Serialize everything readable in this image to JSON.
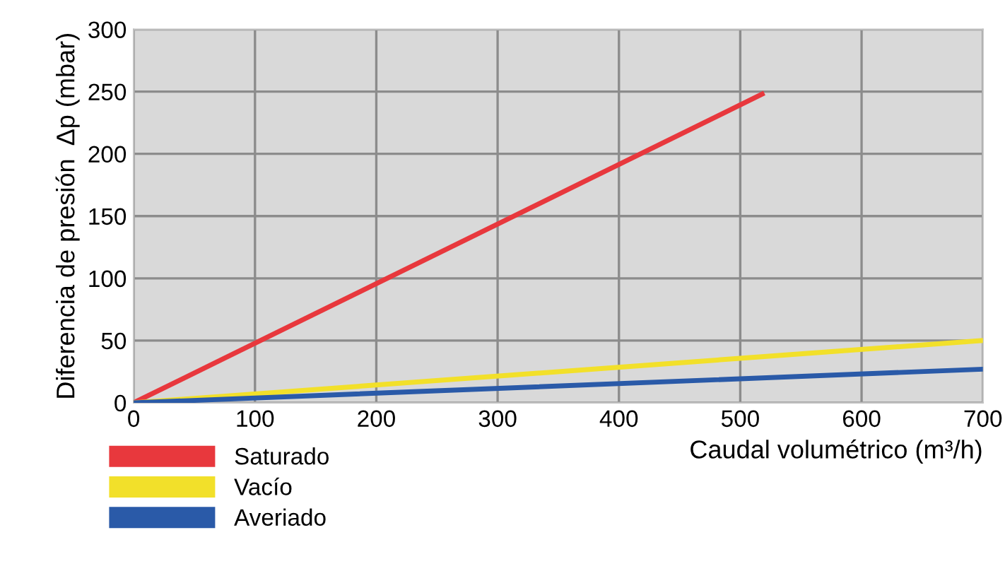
{
  "chart_data": {
    "type": "line",
    "xlabel": "Caudal volumétrico (m³/h)",
    "ylabel": "Diferencia de presión  Δp (mbar)",
    "xlim": [
      0,
      700
    ],
    "xticks": [
      0,
      100,
      200,
      300,
      400,
      500,
      600,
      700
    ],
    "ylim": [
      0,
      300
    ],
    "yticks": [
      0,
      50,
      100,
      150,
      200,
      250,
      300
    ],
    "grid": true,
    "legend": "bottom left",
    "marker": "none",
    "line_style": "solid",
    "series": [
      {
        "name": "Saturado",
        "color": "#e8383d",
        "x": [
          0,
          518
        ],
        "values": [
          0,
          248
        ]
      },
      {
        "name": "Vacío",
        "color": "#f2e02a",
        "x": [
          0,
          700
        ],
        "values": [
          0,
          50
        ]
      },
      {
        "name": "Averiado",
        "color": "#2a5aa8",
        "x": [
          0,
          700
        ],
        "values": [
          0,
          27
        ]
      }
    ]
  }
}
